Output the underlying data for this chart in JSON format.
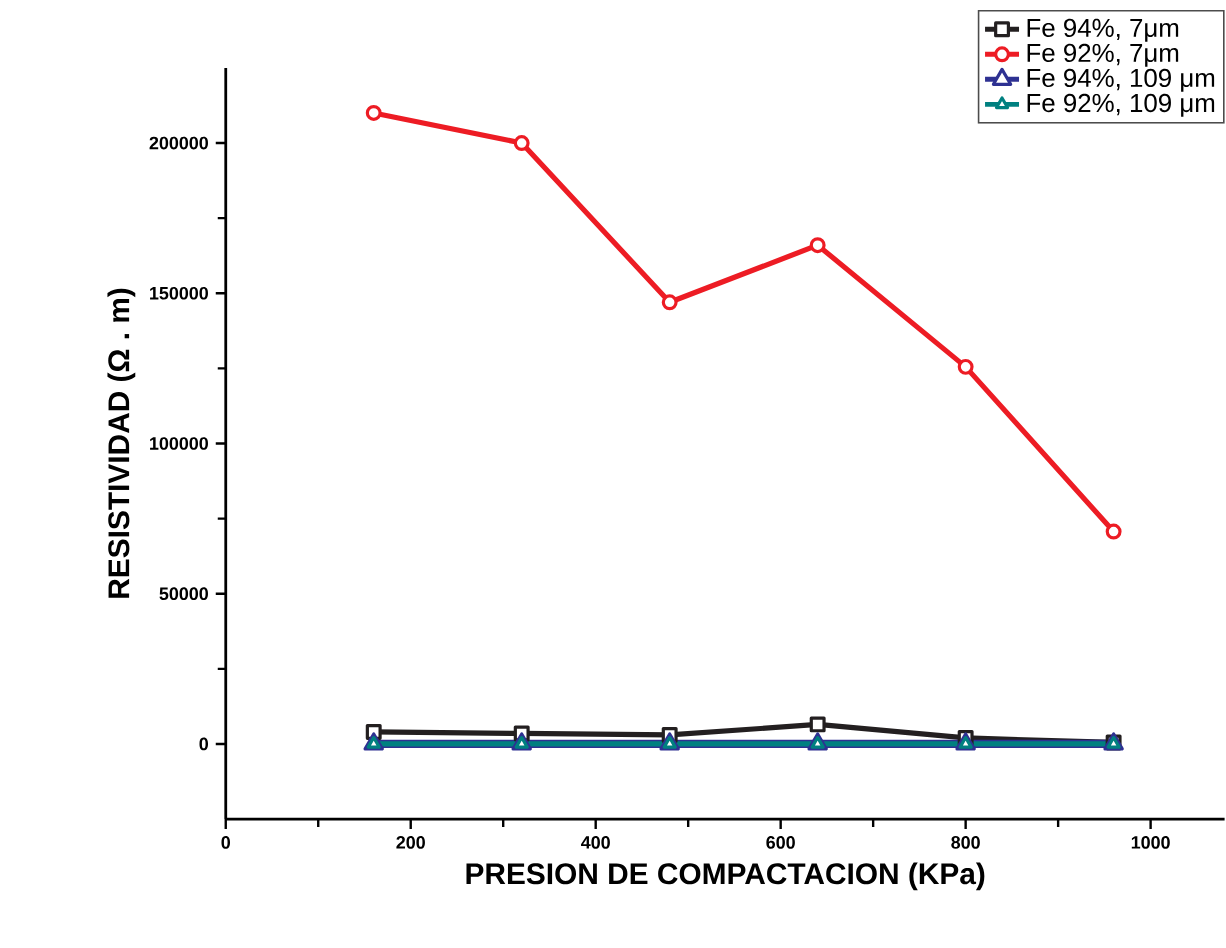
{
  "chart_data": {
    "type": "line",
    "xlabel": "PRESION DE COMPACTACION (KPa)",
    "ylabel": "RESISTIVIDAD (Ω . m)",
    "x": [
      160,
      320,
      480,
      640,
      800,
      960
    ],
    "series": [
      {
        "name": "Fe 94%,  7μm",
        "color": "#231f20",
        "marker": "square",
        "values": [
          4000,
          3500,
          3000,
          6500,
          2000,
          500
        ]
      },
      {
        "name": "Fe 92%, 7μm",
        "color": "#ed1c24",
        "marker": "circle",
        "values": [
          210000,
          200000,
          147000,
          166000,
          125500,
          70700
        ]
      },
      {
        "name": "Fe 94%, 109 μm",
        "color": "#2e3192",
        "marker": "triangle",
        "values": [
          0,
          0,
          0,
          0,
          0,
          0
        ]
      },
      {
        "name": "Fe 92%, 109 μm",
        "color": "#008080",
        "marker": "triangle_down",
        "values": [
          0,
          0,
          0,
          0,
          0,
          0
        ]
      }
    ],
    "xlim": [
      0,
      1080
    ],
    "ylim": [
      -25000,
      225000
    ],
    "xticks": [
      0,
      200,
      400,
      600,
      800,
      1000
    ],
    "yticks": [
      0,
      50000,
      100000,
      150000,
      200000
    ],
    "grid": false,
    "legend": "top right",
    "line_style": "solid"
  }
}
